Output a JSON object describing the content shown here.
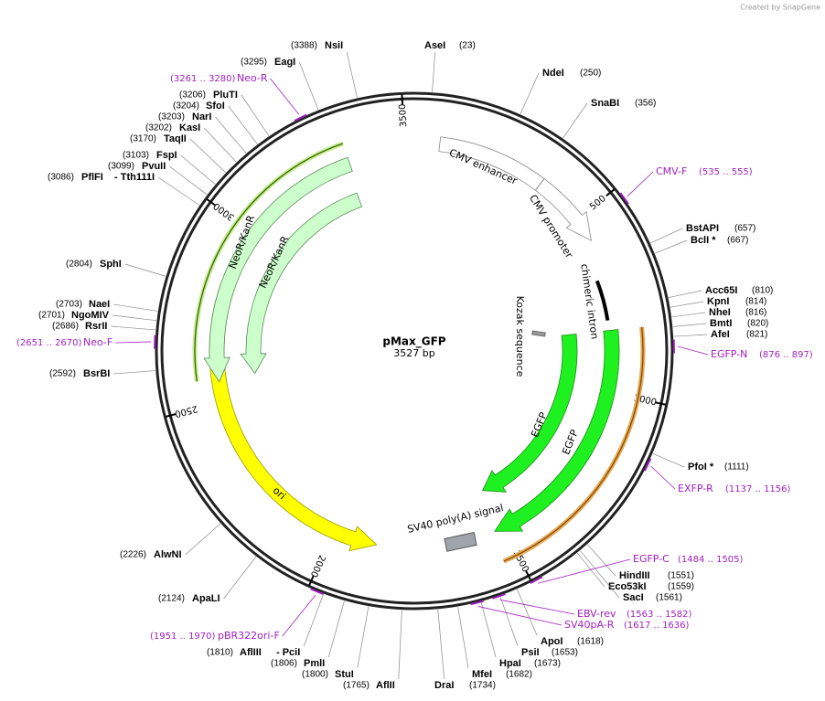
{
  "header": {
    "credit": "Created by SnapGene"
  },
  "map": {
    "name": "pMax_GFP",
    "length": {
      "value": 3527,
      "label": "3527 bp"
    },
    "ticks": [
      500,
      1000,
      1500,
      2000,
      2500,
      3000,
      3500
    ]
  },
  "features": [
    "CMV enhancer",
    "CMV promoter",
    "chimeric intron",
    "Kozak sequence",
    "EGFP",
    "EGFP",
    "SV40 poly(A) signal",
    "ori",
    "NeoR/KanR",
    "NeoR/KanR"
  ],
  "enzymes": [
    {
      "name": "NsiI",
      "site": "(3388)"
    },
    {
      "name": "AseI",
      "site": "(23)"
    },
    {
      "name": "NdeI",
      "site": "(250)"
    },
    {
      "name": "SnaBI",
      "site": "(356)"
    },
    {
      "name": "BstAPI",
      "site": "(657)"
    },
    {
      "name": "BclI *",
      "site": "(667)"
    },
    {
      "name": "Acc65I",
      "site": "(810)"
    },
    {
      "name": "KpnI",
      "site": "(814)"
    },
    {
      "name": "NheI",
      "site": "(816)"
    },
    {
      "name": "BmtI",
      "site": "(820)"
    },
    {
      "name": "AfeI",
      "site": "(821)"
    },
    {
      "name": "PfoI *",
      "site": "(1111)"
    },
    {
      "name": "HindIII",
      "site": "(1551)"
    },
    {
      "name": "Eco53kI",
      "site": "(1559)"
    },
    {
      "name": "SacI",
      "site": "(1561)"
    },
    {
      "name": "ApoI",
      "site": "(1618)"
    },
    {
      "name": "PsiI",
      "site": "(1653)"
    },
    {
      "name": "HpaI",
      "site": "(1673)"
    },
    {
      "name": "MfeI",
      "site": "(1682)"
    },
    {
      "name": "DraI",
      "site": "(1734)"
    },
    {
      "name": "AflII",
      "site": "(1765)"
    },
    {
      "name": "StuI",
      "site": "(1800)"
    },
    {
      "name": "PmlI",
      "site": "(1806)"
    },
    {
      "name": "AflIII",
      "name2": "- PciI",
      "site": "(1810)"
    },
    {
      "name": "ApaLI",
      "site": "(2124)"
    },
    {
      "name": "AlwNI",
      "site": "(2226)"
    },
    {
      "name": "BsrBI",
      "site": "(2592)"
    },
    {
      "name": "RsrII",
      "site": "(2686)"
    },
    {
      "name": "NgoMIV",
      "site": "(2701)"
    },
    {
      "name": "NaeI",
      "site": "(2703)"
    },
    {
      "name": "SphI",
      "site": "(2804)"
    },
    {
      "name": "PflFI",
      "name2": "- Tth111I",
      "site": "(3086)"
    },
    {
      "name": "PvuII",
      "site": "(3099)"
    },
    {
      "name": "FspI",
      "site": "(3103)"
    },
    {
      "name": "TaqII",
      "site": "(3170)"
    },
    {
      "name": "KasI",
      "site": "(3202)"
    },
    {
      "name": "NarI",
      "site": "(3203)"
    },
    {
      "name": "SfoI",
      "site": "(3204)"
    },
    {
      "name": "PluTI",
      "site": "(3206)"
    },
    {
      "name": "EagI",
      "site": "(3295)"
    }
  ],
  "primers": [
    {
      "name": "Neo-R",
      "range": "(3261 .. 3280)"
    },
    {
      "name": "CMV-F",
      "range": "(535 .. 555)"
    },
    {
      "name": "EGFP-N",
      "range": "(876 .. 897)"
    },
    {
      "name": "EXFP-R",
      "range": "(1137 .. 1156)"
    },
    {
      "name": "EGFP-C",
      "range": "(1484 .. 1505)"
    },
    {
      "name": "EBV-rev",
      "range": "(1563 .. 1582)"
    },
    {
      "name": "SV40pA-R",
      "range": "(1617 .. 1636)"
    },
    {
      "name": "pBR322ori-F",
      "range": "(1951 .. 1970)"
    },
    {
      "name": "Neo-F",
      "range": "(2651 .. 2670)"
    }
  ]
}
